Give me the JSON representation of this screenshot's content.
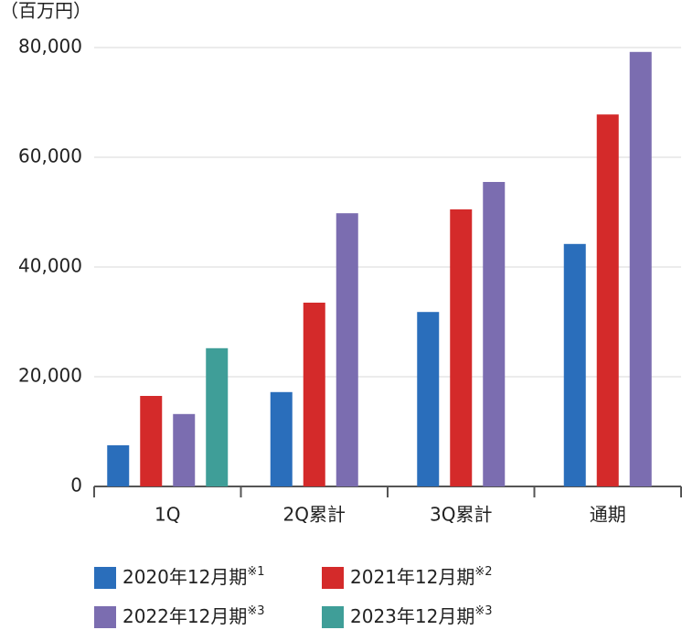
{
  "chart_data": {
    "type": "bar",
    "y_label": "（百万円）",
    "categories": [
      "1Q",
      "2Q累計",
      "3Q累計",
      "通期"
    ],
    "series": [
      {
        "name": "2020年12月期",
        "note": "※1",
        "color": "#2a6ebb",
        "values": [
          7500,
          17200,
          31800,
          44200
        ]
      },
      {
        "name": "2021年12月期",
        "note": "※2",
        "color": "#d42a2a",
        "values": [
          16500,
          33500,
          50500,
          67800
        ]
      },
      {
        "name": "2022年12月期",
        "note": "※3",
        "color": "#7b6db0",
        "values": [
          13200,
          49800,
          55500,
          79200
        ]
      },
      {
        "name": "2023年12月期",
        "note": "※3",
        "color": "#3f9e98",
        "values": [
          25200,
          null,
          null,
          null
        ]
      }
    ],
    "ylim": [
      0,
      80000
    ],
    "yticks": [
      {
        "value": 0,
        "label": "0"
      },
      {
        "value": 20000,
        "label": "20,000"
      },
      {
        "value": 40000,
        "label": "40,000"
      },
      {
        "value": 60000,
        "label": "60,000"
      },
      {
        "value": 80000,
        "label": "80,000"
      }
    ],
    "grid": true
  }
}
